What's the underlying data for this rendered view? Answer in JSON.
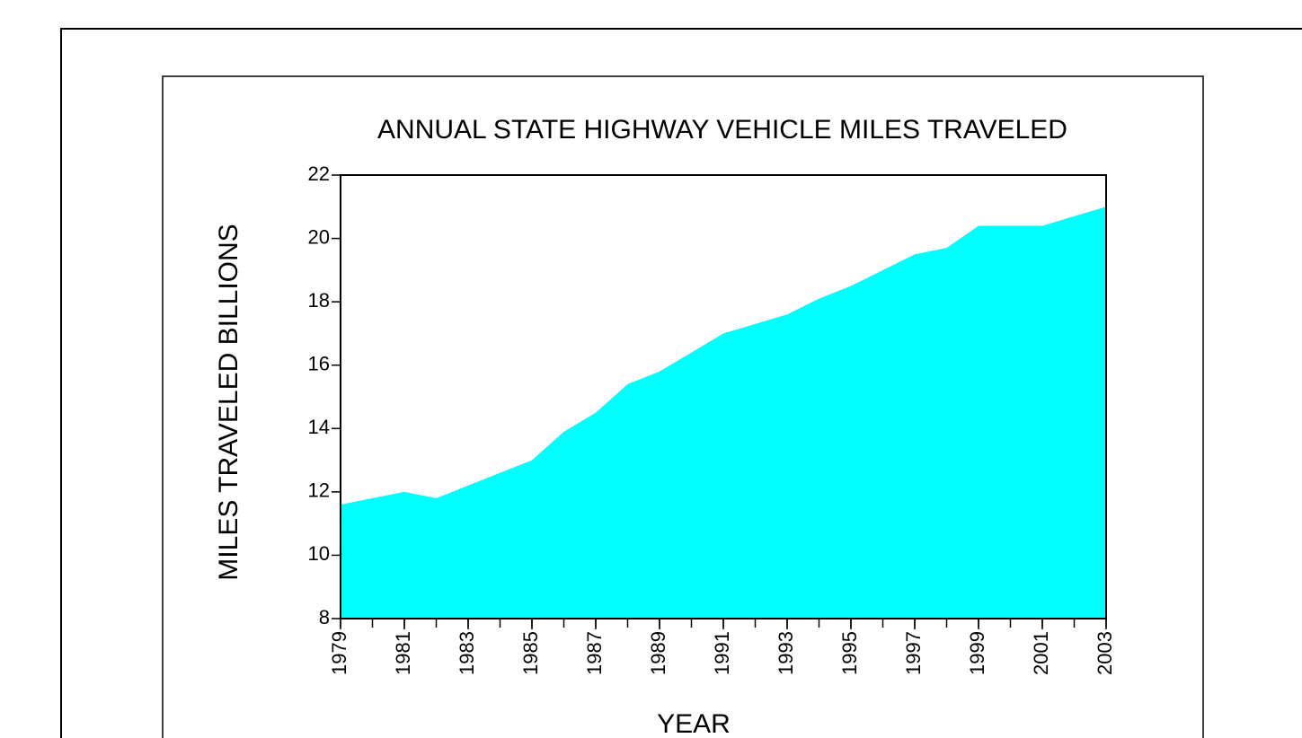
{
  "chart_data": {
    "type": "area",
    "title": "ANNUAL STATE HIGHWAY VEHICLE MILES TRAVELED",
    "x_label": "YEAR",
    "y_label": "MILES TRAVELED BILLIONS",
    "x": [
      1979,
      1980,
      1981,
      1982,
      1983,
      1984,
      1985,
      1986,
      1987,
      1988,
      1989,
      1990,
      1991,
      1992,
      1993,
      1994,
      1995,
      1996,
      1997,
      1998,
      1999,
      2000,
      2001,
      2002,
      2003
    ],
    "values": [
      11.6,
      11.8,
      12.0,
      11.8,
      12.2,
      12.6,
      13.0,
      13.9,
      14.5,
      15.4,
      15.8,
      16.4,
      17.0,
      17.3,
      17.6,
      18.1,
      18.5,
      19.0,
      19.5,
      19.7,
      20.4,
      20.4,
      20.4,
      20.7,
      21.0
    ],
    "color": "#00ffff",
    "xlim": [
      1979,
      2003
    ],
    "xticks": [
      1979,
      1981,
      1983,
      1985,
      1987,
      1989,
      1991,
      1993,
      1995,
      1997,
      1999,
      2001,
      2003
    ],
    "ylim": [
      8,
      22
    ],
    "yticks": [
      8,
      10,
      12,
      14,
      16,
      18,
      20,
      22
    ]
  }
}
